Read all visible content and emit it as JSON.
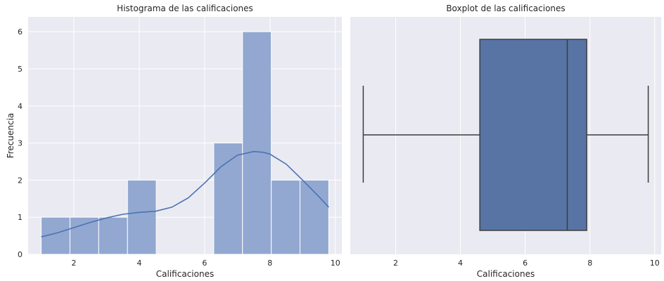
{
  "chart_data": [
    {
      "type": "bar",
      "subtype": "histogram",
      "title": "Histograma de las calificaciones",
      "xlabel": "Calificaciones",
      "ylabel": "Frecuencia",
      "xlim": [
        0.6,
        10.2
      ],
      "ylim": [
        0,
        6.4
      ],
      "xticks": [
        2,
        4,
        6,
        8,
        10
      ],
      "yticks": [
        0,
        1,
        2,
        3,
        4,
        5,
        6
      ],
      "grid": true,
      "bar_color": "#92a8d1",
      "bins": [
        {
          "start": 1.0,
          "end": 1.88,
          "count": 1
        },
        {
          "start": 1.88,
          "end": 2.76,
          "count": 1
        },
        {
          "start": 2.76,
          "end": 3.64,
          "count": 1
        },
        {
          "start": 3.64,
          "end": 4.52,
          "count": 2
        },
        {
          "start": 4.52,
          "end": 5.4,
          "count": 0
        },
        {
          "start": 5.4,
          "end": 6.28,
          "count": 0
        },
        {
          "start": 6.28,
          "end": 7.16,
          "count": 3
        },
        {
          "start": 7.16,
          "end": 8.04,
          "count": 6
        },
        {
          "start": 8.04,
          "end": 8.92,
          "count": 2
        },
        {
          "start": 8.92,
          "end": 9.8,
          "count": 2
        }
      ],
      "kde": {
        "color": "#4c72b0",
        "x": [
          1.0,
          1.5,
          2.0,
          2.5,
          3.0,
          3.5,
          4.0,
          4.5,
          5.0,
          5.5,
          6.0,
          6.5,
          7.0,
          7.5,
          7.8,
          8.0,
          8.5,
          9.0,
          9.5,
          9.8
        ],
        "y": [
          0.47,
          0.58,
          0.72,
          0.86,
          0.98,
          1.08,
          1.13,
          1.16,
          1.27,
          1.52,
          1.92,
          2.36,
          2.67,
          2.77,
          2.75,
          2.7,
          2.43,
          2.0,
          1.55,
          1.27
        ]
      }
    },
    {
      "type": "boxplot",
      "title": "Boxplot de las calificaciones",
      "xlabel": "Calificaciones",
      "xlim": [
        0.6,
        10.2
      ],
      "xticks": [
        2,
        4,
        6,
        8,
        10
      ],
      "grid": true,
      "box_color": "#5874a5",
      "min": 1.0,
      "q1": 4.6,
      "median": 7.3,
      "q3": 7.9,
      "max": 9.8
    }
  ]
}
